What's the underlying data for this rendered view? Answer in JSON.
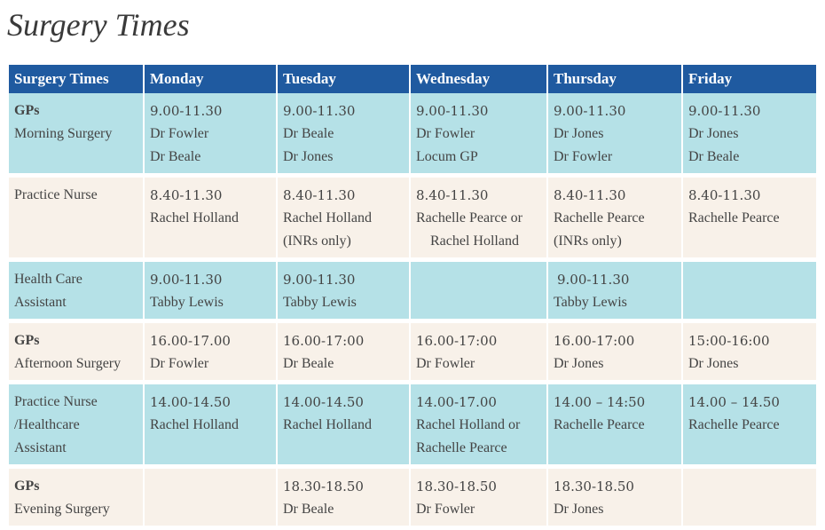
{
  "page": {
    "title": "Surgery Times"
  },
  "table": {
    "headers": [
      "Surgery Times",
      "Monday",
      "Tuesday",
      "Wednesday",
      "Thursday",
      "Friday"
    ],
    "rows": [
      {
        "role_name": "GPs",
        "role_desc": [
          "Morning Surgery"
        ],
        "cells": [
          [
            "9.00-11.30",
            "Dr Fowler",
            "Dr Beale"
          ],
          [
            "9.00-11.30",
            "Dr Beale",
            "Dr Jones"
          ],
          [
            "9.00-11.30",
            "Dr Fowler",
            "Locum GP"
          ],
          [
            "9.00-11.30",
            "Dr Jones",
            "Dr Fowler"
          ],
          [
            "9.00-11.30",
            "Dr Jones",
            "Dr Beale"
          ]
        ]
      },
      {
        "role_name": "",
        "role_desc": [
          "Practice Nurse"
        ],
        "cells": [
          [
            "8.40-11.30",
            "Rachel Holland"
          ],
          [
            "8.40-11.30",
            "Rachel Holland",
            "(INRs only)"
          ],
          [
            "8.40-11.30",
            "Rachelle Pearce or",
            "Rachel Holland"
          ],
          [
            "8.40-11.30",
            "Rachelle Pearce",
            "(INRs only)"
          ],
          [
            "8.40-11.30",
            "Rachelle Pearce"
          ]
        ]
      },
      {
        "role_name": "",
        "role_desc": [
          "Health Care",
          "Assistant"
        ],
        "cells": [
          [
            "9.00-11.30",
            "Tabby Lewis"
          ],
          [
            "9.00-11.30",
            "Tabby Lewis"
          ],
          [],
          [
            "9.00-11.30",
            "Tabby Lewis"
          ],
          []
        ]
      },
      {
        "role_name": "GPs",
        "role_desc": [
          "Afternoon Surgery"
        ],
        "cells": [
          [
            "16.00-17.00",
            "Dr Fowler"
          ],
          [
            "16.00-17:00",
            "Dr Beale"
          ],
          [
            "16.00-17:00",
            "Dr Fowler"
          ],
          [
            "16.00-17:00",
            "Dr Jones"
          ],
          [
            "15:00-16:00",
            "Dr Jones"
          ]
        ]
      },
      {
        "role_name": "",
        "role_desc": [
          "Practice Nurse",
          "/Healthcare",
          "Assistant"
        ],
        "cells": [
          [
            "14.00-14.50",
            "Rachel Holland"
          ],
          [
            "14.00-14.50",
            "Rachel Holland"
          ],
          [
            "14.00-17.00",
            "Rachel Holland or",
            "Rachelle Pearce"
          ],
          [
            "14.00 – 14:50",
            "Rachelle Pearce"
          ],
          [
            "14.00 – 14.50",
            "Rachelle Pearce"
          ]
        ]
      },
      {
        "role_name": "GPs",
        "role_desc": [
          "Evening Surgery"
        ],
        "cells": [
          [],
          [
            "18.30-18.50",
            "Dr Beale"
          ],
          [
            "18.30-18.50",
            "Dr Fowler"
          ],
          [
            "18.30-18.50",
            "Dr Jones"
          ],
          []
        ]
      }
    ]
  }
}
